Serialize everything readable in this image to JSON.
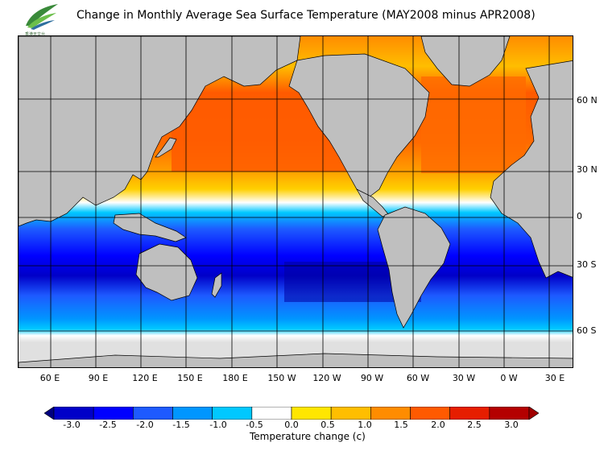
{
  "title": "Change in Monthly Average Sea Surface Temperature (MAY2008 minus APR2008)",
  "logo": {
    "icon": "observatory-leaf-logo",
    "caption": "香港天文台"
  },
  "map": {
    "longitude_labels": [
      "60 E",
      "90 E",
      "120 E",
      "150 E",
      "180 E",
      "150 W",
      "120 W",
      "90 W",
      "60 W",
      "30 W",
      "0 W",
      "30 E"
    ],
    "latitude_labels": [
      "60 N",
      "30 N",
      "0",
      "30 S",
      "60 S"
    ],
    "colors": {
      "land": "#bfbfbf",
      "ice": "#e0e0e0",
      "grid": "#000000"
    }
  },
  "colorbar": {
    "ticks": [
      "-3.0",
      "-2.5",
      "-2.0",
      "-1.5",
      "-1.0",
      "-0.5",
      "0.0",
      "0.5",
      "1.0",
      "1.5",
      "2.0",
      "2.5",
      "3.0"
    ],
    "colors": [
      "#000080",
      "#0000c8",
      "#0000ff",
      "#1e5aff",
      "#0096ff",
      "#00c8ff",
      "#ffffff",
      "#ffe600",
      "#ffbe00",
      "#ff8c00",
      "#ff5a00",
      "#e61e00",
      "#b40000",
      "#a00000"
    ],
    "label": "Temperature change  (c)"
  }
}
